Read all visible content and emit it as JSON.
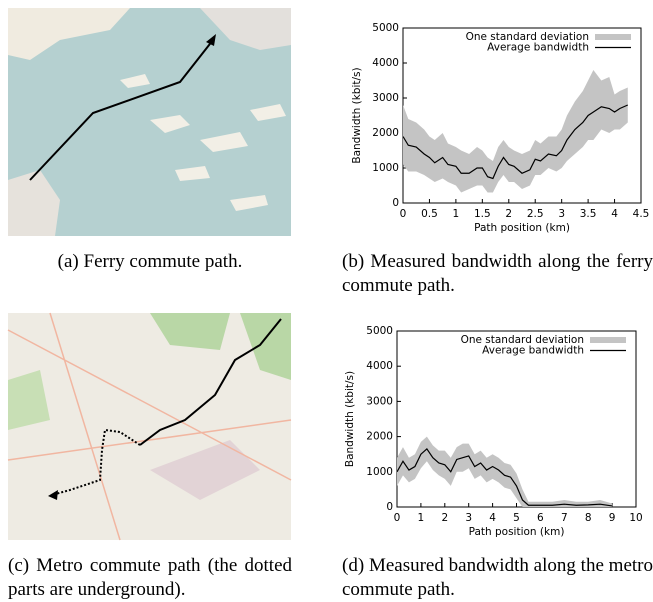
{
  "chart_data": [
    {
      "type": "band-line",
      "y_label": "Bandwidth (kbit/s)",
      "x_label": "Path position (km)",
      "xlim": [
        0,
        4.5
      ],
      "xticks": [
        0,
        0.5,
        1,
        1.5,
        2,
        2.5,
        3,
        3.5,
        4,
        4.5
      ],
      "ylim": [
        0,
        5000
      ],
      "yticks": [
        0,
        1000,
        2000,
        3000,
        4000,
        5000
      ],
      "legend": "top-right",
      "x": [
        0,
        0.1,
        0.25,
        0.4,
        0.5,
        0.6,
        0.75,
        0.85,
        1.0,
        1.1,
        1.25,
        1.4,
        1.5,
        1.6,
        1.7,
        1.8,
        1.9,
        2.0,
        2.1,
        2.25,
        2.4,
        2.5,
        2.6,
        2.75,
        2.9,
        3.0,
        3.1,
        3.25,
        3.4,
        3.5,
        3.6,
        3.75,
        3.9,
        4.0,
        4.1,
        4.25
      ],
      "series": [
        {
          "name": "One standard deviation",
          "color": "#c4c4c4",
          "upper": [
            2800,
            2400,
            2300,
            2100,
            1900,
            1800,
            2000,
            1700,
            1600,
            1500,
            1400,
            1600,
            1500,
            1300,
            1200,
            1600,
            1800,
            1600,
            1500,
            1400,
            1500,
            1800,
            1700,
            1900,
            1900,
            2100,
            2500,
            2900,
            3200,
            3500,
            3800,
            3500,
            3600,
            3100,
            3200,
            3300
          ],
          "lower": [
            1100,
            900,
            900,
            800,
            700,
            600,
            700,
            600,
            500,
            300,
            400,
            500,
            500,
            300,
            300,
            600,
            800,
            600,
            600,
            400,
            500,
            800,
            800,
            1000,
            900,
            1000,
            1200,
            1400,
            1600,
            1800,
            1800,
            2100,
            2000,
            2100,
            2100,
            2300
          ]
        },
        {
          "name": "Average bandwidth",
          "color": "#000000",
          "values": [
            1900,
            1650,
            1600,
            1400,
            1300,
            1150,
            1300,
            1100,
            1050,
            850,
            850,
            1000,
            1000,
            750,
            700,
            1050,
            1300,
            1100,
            1050,
            850,
            950,
            1250,
            1200,
            1400,
            1350,
            1500,
            1800,
            2100,
            2300,
            2500,
            2600,
            2750,
            2700,
            2600,
            2700,
            2800
          ]
        }
      ]
    },
    {
      "type": "band-line",
      "y_label": "Bandwidth (kbit/s)",
      "x_label": "Path position (km)",
      "xlim": [
        0,
        10
      ],
      "xticks": [
        0,
        1,
        2,
        3,
        4,
        5,
        6,
        7,
        8,
        9,
        10
      ],
      "ylim": [
        0,
        5000
      ],
      "yticks": [
        0,
        1000,
        2000,
        3000,
        4000,
        5000
      ],
      "legend": "top-right",
      "x": [
        0,
        0.25,
        0.5,
        0.75,
        1.0,
        1.25,
        1.5,
        1.75,
        2.0,
        2.25,
        2.5,
        2.75,
        3.0,
        3.25,
        3.5,
        3.75,
        4.0,
        4.25,
        4.5,
        4.75,
        5.0,
        5.25,
        5.5,
        6.0,
        6.5,
        7.0,
        7.5,
        8.0,
        8.5,
        9.0
      ],
      "series": [
        {
          "name": "One standard deviation",
          "color": "#c4c4c4",
          "upper": [
            1400,
            1700,
            1400,
            1500,
            1850,
            2000,
            1750,
            1600,
            1600,
            1400,
            1700,
            1800,
            1800,
            1500,
            1600,
            1400,
            1500,
            1400,
            1250,
            1200,
            950,
            500,
            150,
            150,
            150,
            200,
            150,
            150,
            200,
            100
          ],
          "lower": [
            600,
            900,
            700,
            800,
            1100,
            1300,
            1050,
            900,
            800,
            600,
            1000,
            1000,
            1100,
            800,
            900,
            700,
            800,
            700,
            550,
            500,
            250,
            0,
            0,
            0,
            0,
            0,
            0,
            0,
            0,
            0
          ]
        },
        {
          "name": "Average bandwidth",
          "color": "#000000",
          "values": [
            1000,
            1300,
            1050,
            1150,
            1500,
            1650,
            1400,
            1250,
            1200,
            1000,
            1350,
            1400,
            1450,
            1150,
            1250,
            1050,
            1150,
            1050,
            900,
            850,
            600,
            200,
            50,
            50,
            50,
            80,
            50,
            60,
            80,
            30
          ]
        }
      ]
    }
  ],
  "captions": {
    "a": "(a) Ferry commute path.",
    "b": "(b) Measured bandwidth along the ferry commute path.",
    "c": "(c) Metro commute path (the dotted parts are underground).",
    "d": "(d) Measured bandwidth along the metro commute path."
  }
}
